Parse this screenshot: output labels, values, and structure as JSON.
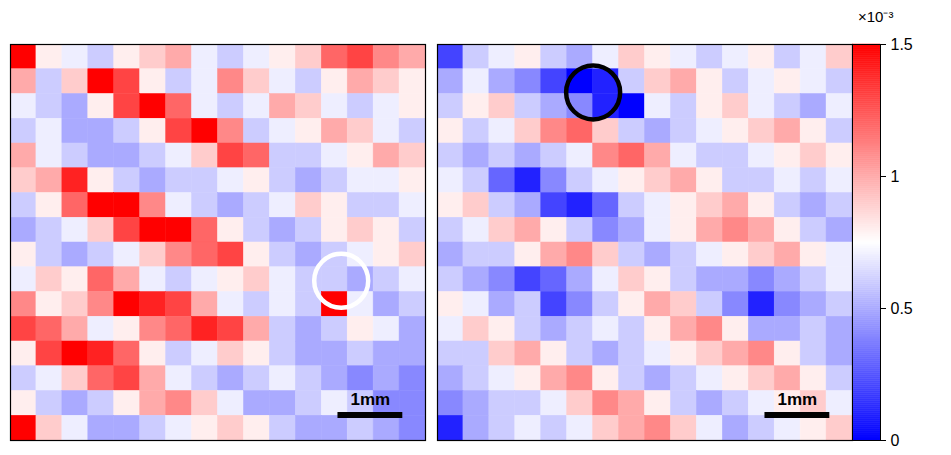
{
  "chart_data": {
    "type": "heatmap",
    "tick_labels": false,
    "width_mm": 6.4,
    "height_mm": 6.2,
    "color_range": [
      0,
      1.5
    ],
    "color_ticks": [
      0,
      0.5,
      1,
      1.5
    ],
    "color_multiplier": "×10⁻³",
    "scale_bar": {
      "label": "1mm",
      "length": 1
    },
    "panels": [
      {
        "circle": {
          "x": 5.1,
          "y": 3.7,
          "color": "#ffffff"
        },
        "cells": [
          [
            1.5,
            0.8,
            0.7,
            0.6,
            0.8,
            0.9,
            1.0,
            0.7,
            0.6,
            0.7,
            0.8,
            0.9,
            1.2,
            1.3,
            1.1,
            1.0
          ],
          [
            1.0,
            0.6,
            0.9,
            1.5,
            1.3,
            0.8,
            0.6,
            0.7,
            1.1,
            0.9,
            0.7,
            0.6,
            0.8,
            1.0,
            0.9,
            0.8
          ],
          [
            0.7,
            0.6,
            0.5,
            0.8,
            1.3,
            1.5,
            1.2,
            0.7,
            0.6,
            0.7,
            1.0,
            0.9,
            0.7,
            0.6,
            0.7,
            0.8
          ],
          [
            0.6,
            0.7,
            0.5,
            0.5,
            0.6,
            0.8,
            1.3,
            1.5,
            1.1,
            0.6,
            0.7,
            0.8,
            1.0,
            0.9,
            0.7,
            0.6
          ],
          [
            1.0,
            0.7,
            0.6,
            0.5,
            0.5,
            0.6,
            0.7,
            0.9,
            1.3,
            1.2,
            0.6,
            0.6,
            0.7,
            0.8,
            1.0,
            0.9
          ],
          [
            0.9,
            1.0,
            1.4,
            0.8,
            0.6,
            0.5,
            0.6,
            0.6,
            0.7,
            0.8,
            0.6,
            0.5,
            0.6,
            0.7,
            0.7,
            0.8
          ],
          [
            0.6,
            0.8,
            1.2,
            1.5,
            1.5,
            1.1,
            0.7,
            0.6,
            0.5,
            0.6,
            0.7,
            0.9,
            0.8,
            0.6,
            0.6,
            0.7
          ],
          [
            0.5,
            0.6,
            0.7,
            0.9,
            1.3,
            1.5,
            1.5,
            1.2,
            0.8,
            0.6,
            0.5,
            0.6,
            0.8,
            0.9,
            0.8,
            0.6
          ],
          [
            0.8,
            0.6,
            0.5,
            0.6,
            0.7,
            0.9,
            1.1,
            1.2,
            1.3,
            0.8,
            0.6,
            0.5,
            0.6,
            0.7,
            0.8,
            0.9
          ],
          [
            0.7,
            0.9,
            0.8,
            1.2,
            1.0,
            0.7,
            0.6,
            0.7,
            0.8,
            0.9,
            0.7,
            0.6,
            0.6,
            0.5,
            0.6,
            0.7
          ],
          [
            1.1,
            0.8,
            0.9,
            1.1,
            1.5,
            1.4,
            1.3,
            1.0,
            0.7,
            0.6,
            0.7,
            0.6,
            1.5,
            0.7,
            0.5,
            0.6
          ],
          [
            1.3,
            1.2,
            1.0,
            0.7,
            0.8,
            1.1,
            1.2,
            1.4,
            1.3,
            1.0,
            0.6,
            0.5,
            0.6,
            0.8,
            0.7,
            0.5
          ],
          [
            0.8,
            1.3,
            1.5,
            1.4,
            1.2,
            0.8,
            0.6,
            0.7,
            0.9,
            0.8,
            0.6,
            0.5,
            0.5,
            0.6,
            0.5,
            0.5
          ],
          [
            0.6,
            0.7,
            0.9,
            1.2,
            1.3,
            1.0,
            0.7,
            0.6,
            0.5,
            0.6,
            0.7,
            0.6,
            0.5,
            0.4,
            0.5,
            0.4
          ],
          [
            0.8,
            0.6,
            0.5,
            0.6,
            0.8,
            1.0,
            1.1,
            0.9,
            0.7,
            0.5,
            0.5,
            0.6,
            0.7,
            0.6,
            0.4,
            0.4
          ],
          [
            1.5,
            0.9,
            0.7,
            0.5,
            0.5,
            0.6,
            0.7,
            0.8,
            0.9,
            0.8,
            0.6,
            0.5,
            0.5,
            0.6,
            0.5,
            0.4
          ]
        ]
      },
      {
        "circle": {
          "x": 2.4,
          "y": 0.75,
          "color": "#000000"
        },
        "cells": [
          [
            0.2,
            0.6,
            0.7,
            0.8,
            0.6,
            0.5,
            0.7,
            0.9,
            0.8,
            0.7,
            0.6,
            0.7,
            0.8,
            0.6,
            0.7,
            0.9
          ],
          [
            0.5,
            0.7,
            0.5,
            0.4,
            0.2,
            0.0,
            0.1,
            0.6,
            0.9,
            1.0,
            0.8,
            0.6,
            0.7,
            0.8,
            0.7,
            0.6
          ],
          [
            0.6,
            0.8,
            0.9,
            0.6,
            0.5,
            0.4,
            0.1,
            0.0,
            0.7,
            0.6,
            0.8,
            0.9,
            0.7,
            0.6,
            0.5,
            0.7
          ],
          [
            0.8,
            0.6,
            0.7,
            0.9,
            1.1,
            1.2,
            0.9,
            0.6,
            0.5,
            0.6,
            0.7,
            0.8,
            0.9,
            1.0,
            0.8,
            0.6
          ],
          [
            0.6,
            0.5,
            0.6,
            0.5,
            0.6,
            0.7,
            1.1,
            1.2,
            1.0,
            0.7,
            0.6,
            0.6,
            0.7,
            0.8,
            0.9,
            0.8
          ],
          [
            0.7,
            0.6,
            0.3,
            0.1,
            0.4,
            0.6,
            0.7,
            0.8,
            0.9,
            1.0,
            0.8,
            0.6,
            0.6,
            0.7,
            0.6,
            0.7
          ],
          [
            0.8,
            0.9,
            0.6,
            0.5,
            0.2,
            0.1,
            0.3,
            0.6,
            0.7,
            0.8,
            0.9,
            1.0,
            0.8,
            0.6,
            0.5,
            0.6
          ],
          [
            0.6,
            0.7,
            0.9,
            1.0,
            0.8,
            0.6,
            0.4,
            0.5,
            0.7,
            0.8,
            1.0,
            1.1,
            1.0,
            0.8,
            0.6,
            0.5
          ],
          [
            0.5,
            0.6,
            0.6,
            0.8,
            1.0,
            1.1,
            0.9,
            0.6,
            0.5,
            0.6,
            0.7,
            0.8,
            0.9,
            1.0,
            0.8,
            0.7
          ],
          [
            0.6,
            0.5,
            0.4,
            0.2,
            0.3,
            0.5,
            0.7,
            0.9,
            0.8,
            0.6,
            0.5,
            0.5,
            0.4,
            0.5,
            0.6,
            0.7
          ],
          [
            0.8,
            0.7,
            0.5,
            0.6,
            0.2,
            0.4,
            0.6,
            0.8,
            1.0,
            0.9,
            0.6,
            0.4,
            0.1,
            0.4,
            0.5,
            0.6
          ],
          [
            0.7,
            0.9,
            0.8,
            0.6,
            0.5,
            0.6,
            0.7,
            0.6,
            0.8,
            1.0,
            1.1,
            0.8,
            0.5,
            0.5,
            0.6,
            0.5
          ],
          [
            0.6,
            0.6,
            0.9,
            1.0,
            0.8,
            0.6,
            0.5,
            0.6,
            0.7,
            0.8,
            0.9,
            1.0,
            1.1,
            0.8,
            0.6,
            0.5
          ],
          [
            0.5,
            0.6,
            0.7,
            0.8,
            1.0,
            1.1,
            0.8,
            0.6,
            0.5,
            0.6,
            0.7,
            0.8,
            0.9,
            1.0,
            0.8,
            0.6
          ],
          [
            0.4,
            0.5,
            0.6,
            0.6,
            0.7,
            0.9,
            1.1,
            1.0,
            0.8,
            0.6,
            0.5,
            0.6,
            0.7,
            0.8,
            0.9,
            0.7
          ],
          [
            0.1,
            0.5,
            0.6,
            0.7,
            0.6,
            0.7,
            0.9,
            1.0,
            1.1,
            0.9,
            0.7,
            0.5,
            0.6,
            0.7,
            0.8,
            0.9
          ]
        ]
      }
    ]
  }
}
